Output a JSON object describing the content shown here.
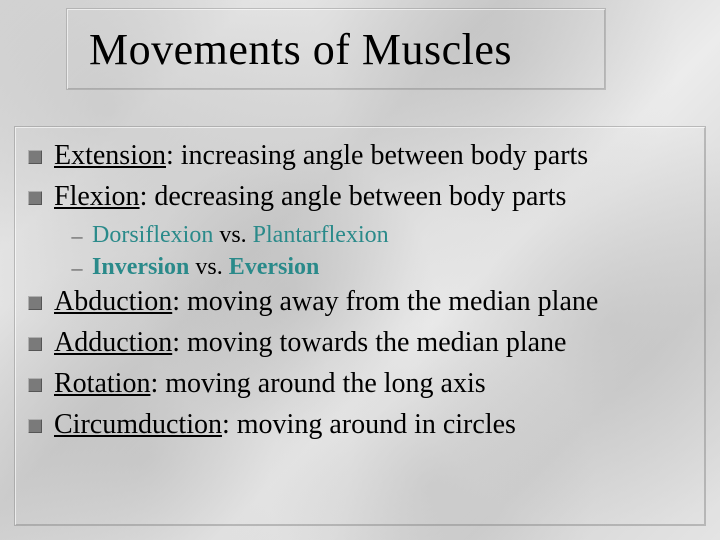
{
  "title": "Movements of Muscles",
  "bullets": [
    {
      "term": "Extension",
      "desc": ": increasing angle between body parts"
    },
    {
      "term": "Flexion",
      "desc": ": decreasing angle between body parts"
    }
  ],
  "subs": [
    {
      "a": "Dorsiflexion",
      "vs": " vs. ",
      "b": "Plantarflexion"
    },
    {
      "a": "Inversion",
      "vs": " vs. ",
      "b": "Eversion",
      "bold": true
    }
  ],
  "bullets2": [
    {
      "term": "Abduction",
      "desc": ": moving away from the median plane"
    },
    {
      "term": "Adduction",
      "desc": ": moving towards the median plane"
    },
    {
      "term": "Rotation",
      "desc": ": moving around the long axis"
    },
    {
      "term": "Circumduction",
      "desc": ": moving around in circles"
    }
  ],
  "colors": {
    "teal": "#2a8a8a",
    "bullet_fill": "#7a7a7a",
    "text": "#000000"
  },
  "fonts": {
    "title_pt": 44,
    "bullet_pt": 28,
    "sub_pt": 24
  }
}
